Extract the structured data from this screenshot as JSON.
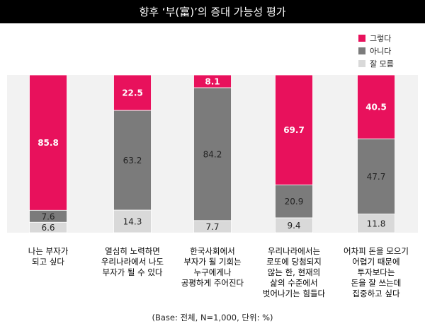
{
  "title": "향후 ‘부(富)’의 증대 가능성 평가",
  "note": "(Base: 전체, N=1,000, 단위: %)",
  "colors": {
    "yes": "#e8115c",
    "no": "#7b7b7b",
    "unsure": "#d9d9d9",
    "title_bg": "#000000",
    "panel_bg": "#f2f2f2"
  },
  "chart_data": {
    "type": "bar",
    "stacked": true,
    "orientation": "vertical",
    "categories": [
      [
        "나는 부자가",
        "되고 싶다"
      ],
      [
        "열심히 노력하면",
        "우리나라에서 나도",
        "부자가 될 수 있다"
      ],
      [
        "한국사회에서",
        "부자가 될 기회는",
        "누구에게나",
        "공평하게 주어진다"
      ],
      [
        "우리나라에서는",
        "로또에 당첨되지",
        "않는 한, 현재의",
        "삶의 수준에서",
        "벗어나기는 힘들다"
      ],
      [
        "어차피 돈을 모으기",
        "어렵기 때문에",
        "투자보다는",
        "돈을 잘 쓰는데",
        "집중하고 싶다"
      ]
    ],
    "series": [
      {
        "name": "그렇다",
        "values": [
          85.8,
          22.5,
          8.1,
          69.7,
          40.5
        ]
      },
      {
        "name": "아니다",
        "values": [
          7.6,
          63.2,
          84.2,
          20.9,
          47.7
        ]
      },
      {
        "name": "잘 모름",
        "values": [
          6.6,
          14.3,
          7.7,
          9.4,
          11.8
        ]
      }
    ],
    "labels": [
      [
        "85.8",
        "7.6",
        "6.6"
      ],
      [
        "22.5",
        "63.2",
        "14.3"
      ],
      [
        "8.1",
        "84.2",
        "7.7"
      ],
      [
        "69.7",
        "20.9",
        "9.4"
      ],
      [
        "40.5",
        "47.7",
        "11.8"
      ]
    ],
    "ylim": [
      0,
      100
    ],
    "legend_position": "top-right",
    "grid": false
  }
}
